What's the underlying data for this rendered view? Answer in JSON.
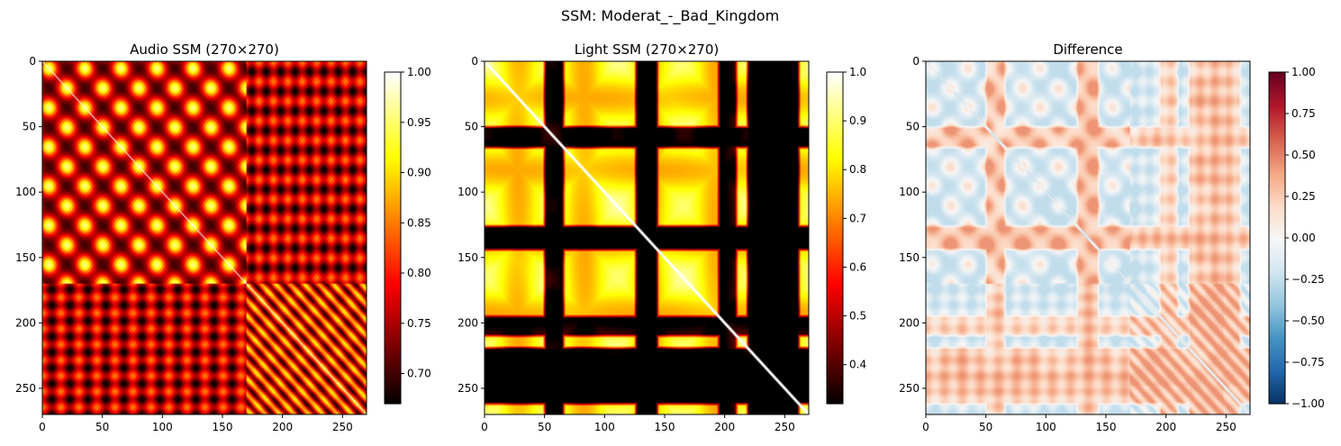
{
  "figure_title": "SSM: Moderat_-_Bad_Kingdom",
  "chart_data": [
    {
      "type": "heatmap",
      "title": "Audio SSM (270×270)",
      "xlabel": "",
      "ylabel": "",
      "size": [
        270,
        270
      ],
      "xlim": [
        0,
        270
      ],
      "ylim": [
        270,
        0
      ],
      "x_ticks": [
        0,
        50,
        100,
        150,
        200,
        250
      ],
      "y_ticks": [
        0,
        50,
        100,
        150,
        200,
        250
      ],
      "colormap": "hot",
      "colorbar": {
        "min": 0.67,
        "max": 1.0,
        "ticks": [
          "0.70",
          "0.75",
          "0.80",
          "0.85",
          "0.90",
          "0.95",
          "1.00"
        ],
        "tick_values": [
          0.7,
          0.75,
          0.8,
          0.85,
          0.9,
          0.95,
          1.0
        ]
      },
      "pattern": {
        "diagonal": 1.0,
        "sections": [
          [
            0,
            170
          ],
          [
            170,
            270
          ]
        ],
        "notes": "periodic lattice of bright blobs with period ~30 frames in first section; finer diagonal stripes (period ~12) in second section"
      }
    },
    {
      "type": "heatmap",
      "title": "Light SSM (270×270)",
      "xlabel": "",
      "ylabel": "",
      "size": [
        270,
        270
      ],
      "xlim": [
        0,
        270
      ],
      "ylim": [
        270,
        0
      ],
      "x_ticks": [
        0,
        50,
        100,
        150,
        200,
        250
      ],
      "y_ticks": [
        0,
        50,
        100,
        150,
        200,
        250
      ],
      "colormap": "hot",
      "colorbar": {
        "min": 0.32,
        "max": 1.0,
        "ticks": [
          "0.4",
          "0.5",
          "0.6",
          "0.7",
          "0.8",
          "0.9",
          "1.0"
        ],
        "tick_values": [
          0.4,
          0.5,
          0.6,
          0.7,
          0.8,
          0.9,
          1.0
        ]
      },
      "pattern": {
        "diagonal": 1.0,
        "dark_bands": [
          [
            53,
            62
          ],
          [
            129,
            140
          ],
          [
            198,
            206
          ],
          [
            222,
            245
          ],
          [
            247,
            258
          ]
        ],
        "notes": "block structure: bright yellow regions separated by dark red/black bands"
      }
    },
    {
      "type": "heatmap",
      "title": "Difference",
      "xlabel": "",
      "ylabel": "",
      "size": [
        270,
        270
      ],
      "xlim": [
        0,
        270
      ],
      "ylim": [
        270,
        0
      ],
      "x_ticks": [
        0,
        50,
        100,
        150,
        200,
        250
      ],
      "y_ticks": [
        0,
        50,
        100,
        150,
        200,
        250
      ],
      "colormap": "RdBu_r",
      "colorbar": {
        "min": -1.0,
        "max": 1.0,
        "ticks": [
          "−1.00",
          "−0.75",
          "−0.50",
          "−0.25",
          "0.00",
          "0.25",
          "0.50",
          "0.75",
          "1.00"
        ],
        "tick_values": [
          -1.0,
          -0.75,
          -0.5,
          -0.25,
          0.0,
          0.25,
          0.5,
          0.75,
          1.0
        ]
      },
      "pattern": {
        "value_range_shown": [
          -0.2,
          0.45
        ],
        "notes": "mostly light red (positive) where light SSM is darker than audio SSM; pale blue patches in bright light blocks"
      }
    }
  ]
}
